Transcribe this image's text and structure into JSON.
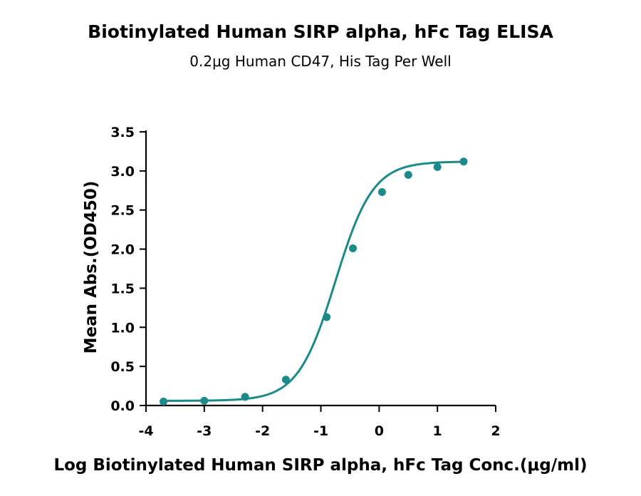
{
  "chart_data": {
    "type": "scatter",
    "title": "Biotinylated Human SIRP alpha, hFc Tag ELISA",
    "subtitle": "0.2μg Human CD47, His Tag Per Well",
    "xlabel": "Log Biotinylated Human SIRP alpha, hFc Tag Conc.(μg/ml)",
    "ylabel": "Mean Abs.(OD450)",
    "xlim": [
      -4,
      2
    ],
    "ylim": [
      0,
      3.5
    ],
    "x_ticks": [
      "-4",
      "-3",
      "-2",
      "-1",
      "0",
      "1",
      "2"
    ],
    "y_ticks": [
      "0.0",
      "0.5",
      "1.0",
      "1.5",
      "2.0",
      "2.5",
      "3.0",
      "3.5"
    ],
    "color": "#1a8a8a",
    "points": [
      {
        "x": -3.7,
        "y": 0.05
      },
      {
        "x": -3.0,
        "y": 0.06
      },
      {
        "x": -2.3,
        "y": 0.11
      },
      {
        "x": -1.6,
        "y": 0.33
      },
      {
        "x": -0.9,
        "y": 1.13
      },
      {
        "x": -0.45,
        "y": 2.01
      },
      {
        "x": 0.05,
        "y": 2.73
      },
      {
        "x": 0.5,
        "y": 2.95
      },
      {
        "x": 1.0,
        "y": 3.05
      },
      {
        "x": 1.45,
        "y": 3.12
      }
    ],
    "fit": {
      "model": "4PL",
      "bottom": 0.06,
      "top": 3.12,
      "logEC50": -0.75,
      "hill": 1.35
    },
    "grid": false,
    "legend": "none"
  }
}
